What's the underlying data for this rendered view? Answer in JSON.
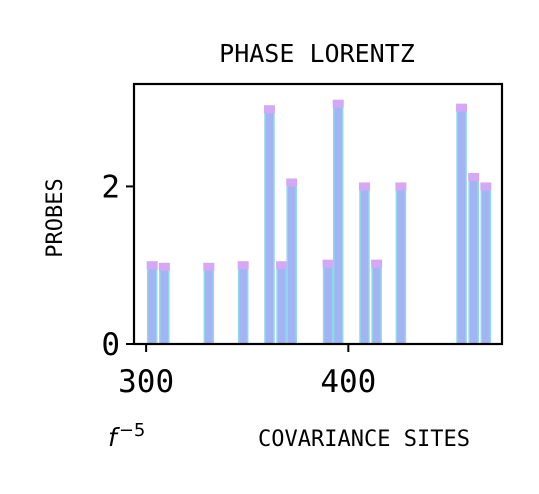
{
  "chart_data": {
    "type": "bar",
    "title": "PHASE LORENTZ",
    "xlabel": "COVARIANCE SITES",
    "ylabel": "PROBES",
    "x_offset_label": {
      "base": "f",
      "exponent": "−5"
    },
    "xlim": [
      294,
      476
    ],
    "ylim": [
      0,
      3.3
    ],
    "x_ticks": [
      300,
      400
    ],
    "y_ticks": [
      0,
      2
    ],
    "grid": false,
    "colors": {
      "bar_fill": "#a3b4f5",
      "bar_edge": "#8fd8e8",
      "cap": "#d4a8f5"
    },
    "series": [
      {
        "x": [
          303,
          309,
          331,
          348,
          361,
          367,
          372,
          390,
          395,
          408,
          414,
          426,
          456,
          462,
          468
        ],
        "values": [
          1.0,
          0.98,
          0.98,
          1.0,
          2.98,
          1.0,
          2.05,
          1.02,
          3.05,
          2.0,
          1.02,
          2.0,
          3.0,
          2.12,
          2.0
        ]
      }
    ]
  }
}
